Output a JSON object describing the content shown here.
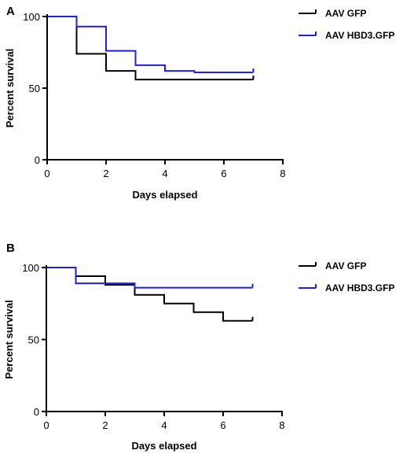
{
  "chart_data": [
    {
      "type": "line",
      "panel": "A",
      "xlabel": "Days elapsed",
      "ylabel": "Percent survival",
      "xlim": [
        0,
        8
      ],
      "ylim": [
        0,
        100
      ],
      "x_ticks": [
        0,
        2,
        4,
        6,
        8
      ],
      "y_ticks": [
        0,
        50,
        100
      ],
      "legend_position": "top-right",
      "series": [
        {
          "name": "AAV GFP",
          "color": "#000000",
          "x": [
            0,
            1,
            2,
            3,
            4,
            5,
            6,
            7
          ],
          "y": [
            100,
            74,
            62,
            56,
            56,
            56,
            56,
            56
          ]
        },
        {
          "name": "AAV HBD3.GFP",
          "color": "#1f1fe6",
          "x": [
            0,
            1,
            2,
            3,
            4,
            5,
            6,
            7
          ],
          "y": [
            100,
            93,
            76,
            66,
            62,
            61,
            61,
            61
          ]
        }
      ]
    },
    {
      "type": "line",
      "panel": "B",
      "xlabel": "Days elapsed",
      "ylabel": "Percent survival",
      "xlim": [
        0,
        8
      ],
      "ylim": [
        0,
        100
      ],
      "x_ticks": [
        0,
        2,
        4,
        6,
        8
      ],
      "y_ticks": [
        0,
        50,
        100
      ],
      "legend_position": "top-right",
      "series": [
        {
          "name": "AAV GFP",
          "color": "#000000",
          "x": [
            0,
            1,
            2,
            3,
            4,
            5,
            6,
            7
          ],
          "y": [
            100,
            94,
            88,
            81,
            75,
            69,
            63,
            63
          ]
        },
        {
          "name": "AAV HBD3.GFP",
          "color": "#1f1fe6",
          "x": [
            0,
            1,
            2,
            3,
            4,
            5,
            6,
            7
          ],
          "y": [
            100,
            89,
            89,
            86,
            86,
            86,
            86,
            86
          ]
        }
      ]
    }
  ]
}
